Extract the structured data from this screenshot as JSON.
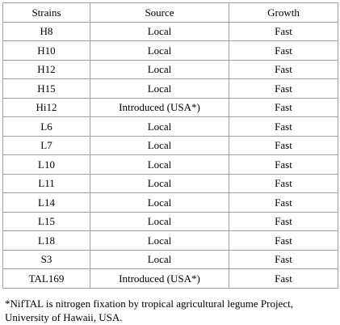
{
  "table": {
    "headers": [
      "Strains",
      "Source",
      "Growth"
    ],
    "rows": [
      [
        "H8",
        "Local",
        "Fast"
      ],
      [
        "H10",
        "Local",
        "Fast"
      ],
      [
        "H12",
        "Local",
        "Fast"
      ],
      [
        "H15",
        "Local",
        "Fast"
      ],
      [
        "Hi12",
        "Introduced (USA*)",
        "Fast"
      ],
      [
        "L6",
        "Local",
        "Fast"
      ],
      [
        "L7",
        "Local",
        "Fast"
      ],
      [
        "L10",
        "Local",
        "Fast"
      ],
      [
        "L11",
        "Local",
        "Fast"
      ],
      [
        "L14",
        "Local",
        "Fast"
      ],
      [
        "L15",
        "Local",
        "Fast"
      ],
      [
        "L18",
        "Local",
        "Fast"
      ],
      [
        "S3",
        "Local",
        "Fast"
      ],
      [
        "TAL169",
        "Introduced (USA*)",
        "Fast"
      ]
    ]
  },
  "footnote": "*NifTAL is nitrogen fixation by tropical agricultural legume Project, University of Hawaii, USA."
}
